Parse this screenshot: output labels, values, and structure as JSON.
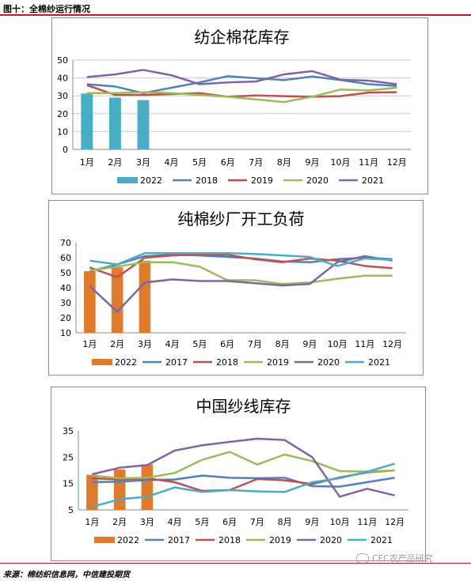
{
  "figure_title": "图十：全棉纱运行情况",
  "source": "来源：棉纺织信息网，中信建投期货",
  "watermark": "CFC农产品研究",
  "chart_data": [
    {
      "type": "bar",
      "title": "纺企棉花库存",
      "categories": [
        "1月",
        "2月",
        "3月",
        "4月",
        "5月",
        "6月",
        "7月",
        "8月",
        "9月",
        "10月",
        "11月",
        "12月"
      ],
      "ylim": [
        0,
        50
      ],
      "yticks": [
        0,
        10,
        20,
        30,
        40,
        50
      ],
      "grid": true,
      "legend_position": "bottom",
      "bar_series": [
        {
          "name": "2022",
          "color": "#4bacc6",
          "values": [
            31.3,
            29.0,
            27.6
          ]
        }
      ],
      "line_series": [
        {
          "name": "2018",
          "color": "#4f81bd",
          "values": [
            36.5,
            35.2,
            31.5,
            34.5,
            37.5,
            41.0,
            39.8,
            38.8,
            40.8,
            38.8,
            36.5,
            35.5
          ]
        },
        {
          "name": "2019",
          "color": "#c0504d",
          "values": [
            36.0,
            30.5,
            30.5,
            31.0,
            31.5,
            29.5,
            30.2,
            29.8,
            29.5,
            29.8,
            31.8,
            32.0
          ]
        },
        {
          "name": "2020",
          "color": "#9bbb59",
          "values": [
            31.5,
            31.5,
            32.0,
            31.5,
            30.5,
            29.5,
            28.0,
            26.5,
            29.5,
            33.5,
            33.0,
            34.5
          ]
        },
        {
          "name": "2021",
          "color": "#8064a2",
          "values": [
            40.5,
            42.0,
            44.5,
            41.5,
            36.5,
            37.5,
            38.0,
            42.0,
            43.8,
            39.0,
            38.5,
            36.5
          ]
        }
      ]
    },
    {
      "type": "bar",
      "title": "纯棉纱厂开工负荷",
      "categories": [
        "1月",
        "2月",
        "3月",
        "4月",
        "5月",
        "6月",
        "7月",
        "8月",
        "9月",
        "10月",
        "11月",
        "12月"
      ],
      "ylim": [
        10,
        70
      ],
      "yticks": [
        10,
        20,
        30,
        40,
        50,
        60,
        70
      ],
      "grid": false,
      "legend_position": "bottom",
      "bar_series": [
        {
          "name": "2022",
          "color": "#e07a2c",
          "values": [
            51.0,
            53.5,
            58.0
          ]
        }
      ],
      "line_series": [
        {
          "name": "2017",
          "color": "#4f81bd",
          "values": [
            51.0,
            55.5,
            61.0,
            62.0,
            61.5,
            60.5,
            59.5,
            57.5,
            57.0,
            59.0,
            60.0,
            59.0
          ]
        },
        {
          "name": "2018",
          "color": "#c0504d",
          "values": [
            53.5,
            47.0,
            60.0,
            61.5,
            62.0,
            62.0,
            59.0,
            57.0,
            59.5,
            58.0,
            54.5,
            53.0
          ]
        },
        {
          "name": "2019",
          "color": "#9bbb59",
          "values": [
            51.5,
            54.0,
            57.0,
            57.0,
            54.0,
            45.0,
            45.0,
            42.5,
            43.5,
            46.0,
            48.0,
            48.0
          ]
        },
        {
          "name": "2020",
          "color": "#8064a2",
          "values": [
            41.0,
            24.0,
            43.5,
            45.5,
            44.5,
            44.5,
            43.0,
            41.5,
            42.5,
            57.0,
            61.0,
            58.0
          ]
        },
        {
          "name": "2021",
          "color": "#4bacc6",
          "values": [
            58.0,
            55.5,
            63.0,
            63.0,
            63.0,
            63.0,
            62.5,
            61.5,
            60.5,
            54.5,
            59.5,
            58.5
          ]
        }
      ]
    },
    {
      "type": "bar",
      "title": "中国纱线库存",
      "categories": [
        "1月",
        "2月",
        "3月",
        "4月",
        "5月",
        "6月",
        "7月",
        "8月",
        "9月",
        "10月",
        "11月",
        "12月"
      ],
      "ylim": [
        5,
        35
      ],
      "yticks": [
        5,
        15,
        25,
        35
      ],
      "grid": false,
      "legend_position": "bottom",
      "bar_series": [
        {
          "name": "2022",
          "color": "#e07a2c",
          "values": [
            18.3,
            20.3,
            22.3
          ]
        }
      ],
      "line_series": [
        {
          "name": "2017",
          "color": "#4f81bd",
          "values": [
            15.5,
            15.7,
            16.3,
            16.5,
            18.0,
            17.2,
            17.0,
            17.2,
            14.0,
            13.8,
            15.5,
            17.2
          ]
        },
        {
          "name": "2018",
          "color": "#c0504d",
          "values": [
            17.0,
            16.5,
            17.0,
            15.5,
            12.2,
            12.5,
            16.7,
            16.2,
            14.8,
            17.3,
            19.2,
            20.0
          ]
        },
        {
          "name": "2019",
          "color": "#9bbb59",
          "values": [
            18.0,
            17.0,
            17.2,
            19.0,
            24.0,
            27.0,
            22.2,
            26.0,
            23.5,
            19.7,
            19.5,
            20.0
          ]
        },
        {
          "name": "2020",
          "color": "#8064a2",
          "values": [
            18.5,
            21.0,
            22.0,
            27.5,
            29.5,
            30.8,
            32.0,
            31.5,
            25.0,
            10.0,
            13.0,
            10.5
          ]
        },
        {
          "name": "2021",
          "color": "#4bacc6",
          "values": [
            6.2,
            9.0,
            10.0,
            13.5,
            11.8,
            12.5,
            12.0,
            11.8,
            15.5,
            17.0,
            19.5,
            22.5
          ]
        }
      ]
    }
  ]
}
